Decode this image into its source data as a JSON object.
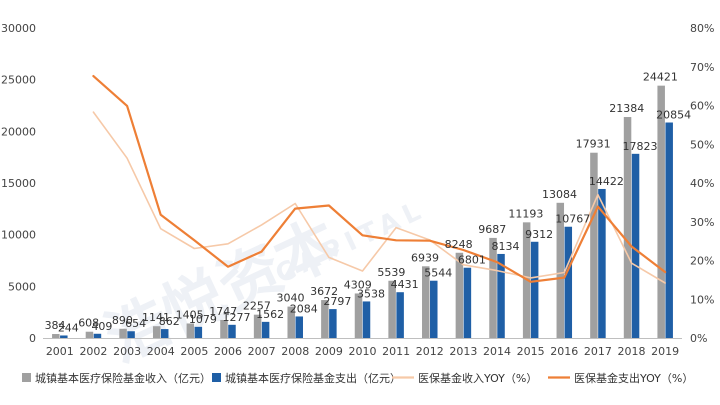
{
  "chart_data": {
    "type": "bar",
    "categories": [
      "2001",
      "2002",
      "2003",
      "2004",
      "2005",
      "2006",
      "2007",
      "2008",
      "2009",
      "2010",
      "2011",
      "2012",
      "2013",
      "2014",
      "2015",
      "2016",
      "2017",
      "2018",
      "2019"
    ],
    "series": [
      {
        "name": "城镇基本医疗保险基金收入（亿元）",
        "type": "bar",
        "axis": "left",
        "color": "#a0a0a0",
        "values": [
          384,
          608,
          890,
          1141,
          1405,
          1747,
          2257,
          3040,
          3672,
          4309,
          5539,
          6939,
          8248,
          9687,
          11193,
          13084,
          17931,
          21384,
          24421
        ]
      },
      {
        "name": "城镇基本医疗保险基金支出（亿元）",
        "type": "bar",
        "axis": "left",
        "color": "#1f5fa6",
        "values": [
          244,
          409,
          654,
          862,
          1079,
          1277,
          1562,
          2084,
          2797,
          3538,
          4431,
          5544,
          6801,
          8134,
          9312,
          10767,
          14422,
          17823,
          20854
        ]
      },
      {
        "name": "医保基金收入YOY（%）",
        "type": "line",
        "axis": "right",
        "color": "#f6c9a8",
        "values": [
          null,
          58.3,
          46.4,
          28.2,
          23.1,
          24.3,
          29.2,
          34.7,
          20.8,
          17.3,
          28.5,
          25.3,
          18.9,
          17.4,
          15.5,
          16.9,
          37.0,
          19.3,
          14.2
        ]
      },
      {
        "name": "医保基金支出YOY（%）",
        "type": "line",
        "axis": "right",
        "color": "#ee7f36",
        "values": [
          null,
          67.6,
          59.9,
          31.8,
          25.2,
          18.4,
          22.3,
          33.4,
          34.2,
          26.5,
          25.2,
          25.1,
          22.7,
          19.6,
          14.5,
          15.6,
          33.9,
          23.6,
          17.0
        ]
      }
    ],
    "y_left": {
      "ylim": [
        0,
        30000
      ],
      "ticks": [
        "0",
        "5000",
        "10000",
        "15000",
        "20000",
        "25000",
        "30000"
      ]
    },
    "y_right": {
      "ylim": [
        0,
        80
      ],
      "ticks": [
        "0%",
        "10%",
        "20%",
        "30%",
        "40%",
        "50%",
        "60%",
        "70%",
        "80%"
      ]
    },
    "grid": false,
    "legend_position": "bottom"
  },
  "watermark": {
    "text": "浩悦资本",
    "sub": "CAPITAL"
  }
}
